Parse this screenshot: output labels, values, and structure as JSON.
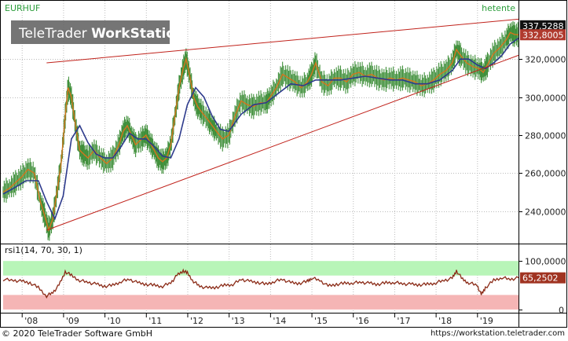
{
  "chart_data": [
    {
      "type": "line",
      "symbol": "EURHUF",
      "interval_label": "hetente",
      "watermark": {
        "brand_a": "TeleTrader",
        "brand_b": "WorkStation"
      },
      "ylim": [
        225000,
        342000
      ],
      "y_ticks": [
        240000,
        260000,
        280000,
        300000,
        320000
      ],
      "y_tick_labels": [
        "240,0000",
        "260,0000",
        "280,0000",
        "300,0000",
        "320,0000"
      ],
      "x_ticks": [
        "'08",
        "'09",
        "'10",
        "'11",
        "'12",
        "'13",
        "'14",
        "'15",
        "'16",
        "'17",
        "'18",
        "'19"
      ],
      "x_tick_years": [
        2008,
        2009,
        2010,
        2011,
        2012,
        2013,
        2014,
        2015,
        2016,
        2017,
        2018,
        2019
      ],
      "xlim": [
        2007.55,
        2020.0
      ],
      "price_series": {
        "name": "EURHUF",
        "x": [
          2007.55,
          2007.7,
          2007.85,
          2008.0,
          2008.15,
          2008.3,
          2008.45,
          2008.55,
          2008.65,
          2008.75,
          2008.85,
          2008.95,
          2009.05,
          2009.12,
          2009.2,
          2009.3,
          2009.4,
          2009.5,
          2009.6,
          2009.75,
          2009.9,
          2010.05,
          2010.2,
          2010.35,
          2010.45,
          2010.55,
          2010.65,
          2010.75,
          2010.9,
          2011.0,
          2011.1,
          2011.2,
          2011.3,
          2011.4,
          2011.5,
          2011.6,
          2011.7,
          2011.8,
          2011.9,
          2011.97,
          2012.05,
          2012.15,
          2012.25,
          2012.35,
          2012.5,
          2012.6,
          2012.7,
          2012.85,
          2013.0,
          2013.15,
          2013.3,
          2013.45,
          2013.6,
          2013.75,
          2013.9,
          2014.0,
          2014.15,
          2014.3,
          2014.45,
          2014.6,
          2014.75,
          2014.9,
          2015.0,
          2015.1,
          2015.25,
          2015.4,
          2015.55,
          2015.7,
          2015.85,
          2016.0,
          2016.15,
          2016.3,
          2016.45,
          2016.6,
          2016.75,
          2016.9,
          2017.05,
          2017.2,
          2017.35,
          2017.5,
          2017.65,
          2017.8,
          2017.95,
          2018.1,
          2018.25,
          2018.4,
          2018.5,
          2018.6,
          2018.75,
          2018.9,
          2019.05,
          2019.15,
          2019.25,
          2019.4,
          2019.55,
          2019.7,
          2019.8,
          2019.9,
          2020.0
        ],
        "values": [
          250000,
          252000,
          255000,
          258000,
          262000,
          260000,
          245000,
          238000,
          230000,
          236000,
          250000,
          265000,
          290000,
          305000,
          300000,
          285000,
          272000,
          270000,
          268000,
          272000,
          268000,
          265000,
          268000,
          275000,
          282000,
          285000,
          280000,
          275000,
          278000,
          280000,
          276000,
          272000,
          268000,
          266000,
          268000,
          275000,
          290000,
          305000,
          315000,
          320000,
          312000,
          300000,
          295000,
          292000,
          288000,
          285000,
          282000,
          278000,
          280000,
          290000,
          298000,
          296000,
          295000,
          297000,
          297000,
          300000,
          305000,
          312000,
          310000,
          308000,
          305000,
          308000,
          312000,
          318000,
          308000,
          306000,
          310000,
          310000,
          308000,
          312000,
          313000,
          311000,
          312000,
          310000,
          309000,
          310000,
          309000,
          310000,
          309000,
          308000,
          306000,
          307000,
          309000,
          312000,
          314000,
          318000,
          325000,
          322000,
          318000,
          316000,
          315000,
          313000,
          317000,
          323000,
          326000,
          330000,
          334000,
          333000,
          332800
        ]
      },
      "moving_average": {
        "x": [
          2007.55,
          2007.8,
          2008.1,
          2008.4,
          2008.6,
          2008.8,
          2009.0,
          2009.2,
          2009.4,
          2009.6,
          2009.8,
          2010.0,
          2010.2,
          2010.4,
          2010.6,
          2010.8,
          2011.0,
          2011.2,
          2011.4,
          2011.6,
          2011.8,
          2012.0,
          2012.2,
          2012.4,
          2012.6,
          2012.8,
          2013.0,
          2013.3,
          2013.6,
          2013.9,
          2014.2,
          2014.5,
          2014.8,
          2015.1,
          2015.4,
          2015.7,
          2016.0,
          2016.3,
          2016.6,
          2016.9,
          2017.2,
          2017.5,
          2017.8,
          2018.1,
          2018.4,
          2018.6,
          2018.8,
          2019.0,
          2019.2,
          2019.4,
          2019.6,
          2019.8,
          2020.0
        ],
        "values": [
          249000,
          252000,
          256000,
          256000,
          245000,
          236000,
          248000,
          278000,
          285000,
          276000,
          270000,
          268000,
          268000,
          274000,
          281000,
          278000,
          278000,
          274000,
          269000,
          268000,
          278000,
          296000,
          305000,
          300000,
          290000,
          283000,
          282000,
          291000,
          296000,
          297000,
          302000,
          307000,
          306000,
          309000,
          309000,
          309000,
          310000,
          311000,
          310000,
          309000,
          309000,
          307000,
          307000,
          309000,
          314000,
          320000,
          320000,
          317000,
          315000,
          318000,
          322000,
          328000,
          331000
        ]
      },
      "trendlines": [
        {
          "name": "upper-resistance",
          "x": [
            2008.6,
            2020.0
          ],
          "values": [
            318000,
            341000
          ]
        },
        {
          "name": "lower-support",
          "x": [
            2008.6,
            2020.0
          ],
          "values": [
            230000,
            322000
          ]
        }
      ],
      "last_value_labels": [
        {
          "text": "337,5288",
          "value": 337528.8,
          "bg": "#111111"
        },
        {
          "text": "332,8005",
          "value": 332800.5,
          "bg": "#b03a2e"
        }
      ]
    },
    {
      "type": "line",
      "title": "rsi1(14, 70, 30, 1)",
      "ylim": [
        -5,
        110
      ],
      "y_ticks": [
        100,
        0
      ],
      "y_tick_labels": [
        "100,0000",
        "0"
      ],
      "overbought": 70,
      "oversold": 30,
      "last_value_label": "65,2502",
      "series": {
        "name": "RSI",
        "x": [
          2007.55,
          2007.8,
          2008.0,
          2008.2,
          2008.4,
          2008.6,
          2008.75,
          2008.9,
          2009.05,
          2009.2,
          2009.4,
          2009.6,
          2009.8,
          2010.0,
          2010.2,
          2010.4,
          2010.6,
          2010.8,
          2011.0,
          2011.2,
          2011.4,
          2011.6,
          2011.75,
          2011.9,
          2012.0,
          2012.15,
          2012.3,
          2012.5,
          2012.7,
          2012.9,
          2013.1,
          2013.3,
          2013.5,
          2013.7,
          2013.9,
          2014.1,
          2014.3,
          2014.5,
          2014.7,
          2014.9,
          2015.0,
          2015.2,
          2015.4,
          2015.6,
          2015.8,
          2016.0,
          2016.2,
          2016.4,
          2016.6,
          2016.8,
          2017.0,
          2017.2,
          2017.4,
          2017.6,
          2017.8,
          2018.0,
          2018.2,
          2018.4,
          2018.5,
          2018.65,
          2018.8,
          2019.0,
          2019.1,
          2019.2,
          2019.4,
          2019.6,
          2019.8,
          2020.0
        ],
        "values": [
          62,
          60,
          58,
          55,
          45,
          28,
          35,
          50,
          78,
          70,
          60,
          56,
          52,
          48,
          50,
          58,
          62,
          55,
          52,
          50,
          48,
          55,
          70,
          80,
          75,
          58,
          48,
          44,
          46,
          50,
          52,
          62,
          58,
          56,
          52,
          58,
          62,
          55,
          54,
          58,
          65,
          60,
          48,
          52,
          54,
          55,
          56,
          54,
          52,
          55,
          56,
          53,
          52,
          51,
          52,
          55,
          60,
          64,
          80,
          62,
          55,
          50,
          30,
          45,
          60,
          66,
          62,
          65.25
        ]
      }
    }
  ],
  "footer": {
    "copyright": "© 2020  TeleTrader Software GmbH",
    "url": "https://workstation.teletrader.com"
  },
  "colors": {
    "price_line": "#d4751e",
    "price_candles": "#3f8f3a",
    "moving_average": "#2d3a8c",
    "trendline": "#c0221b",
    "rsi_line": "#8a2a16",
    "rsi_overbought_band": "#b8f5b8",
    "rsi_oversold_band": "#f5b5b5",
    "watermark_bg": "#666666",
    "frame": "#000000"
  }
}
